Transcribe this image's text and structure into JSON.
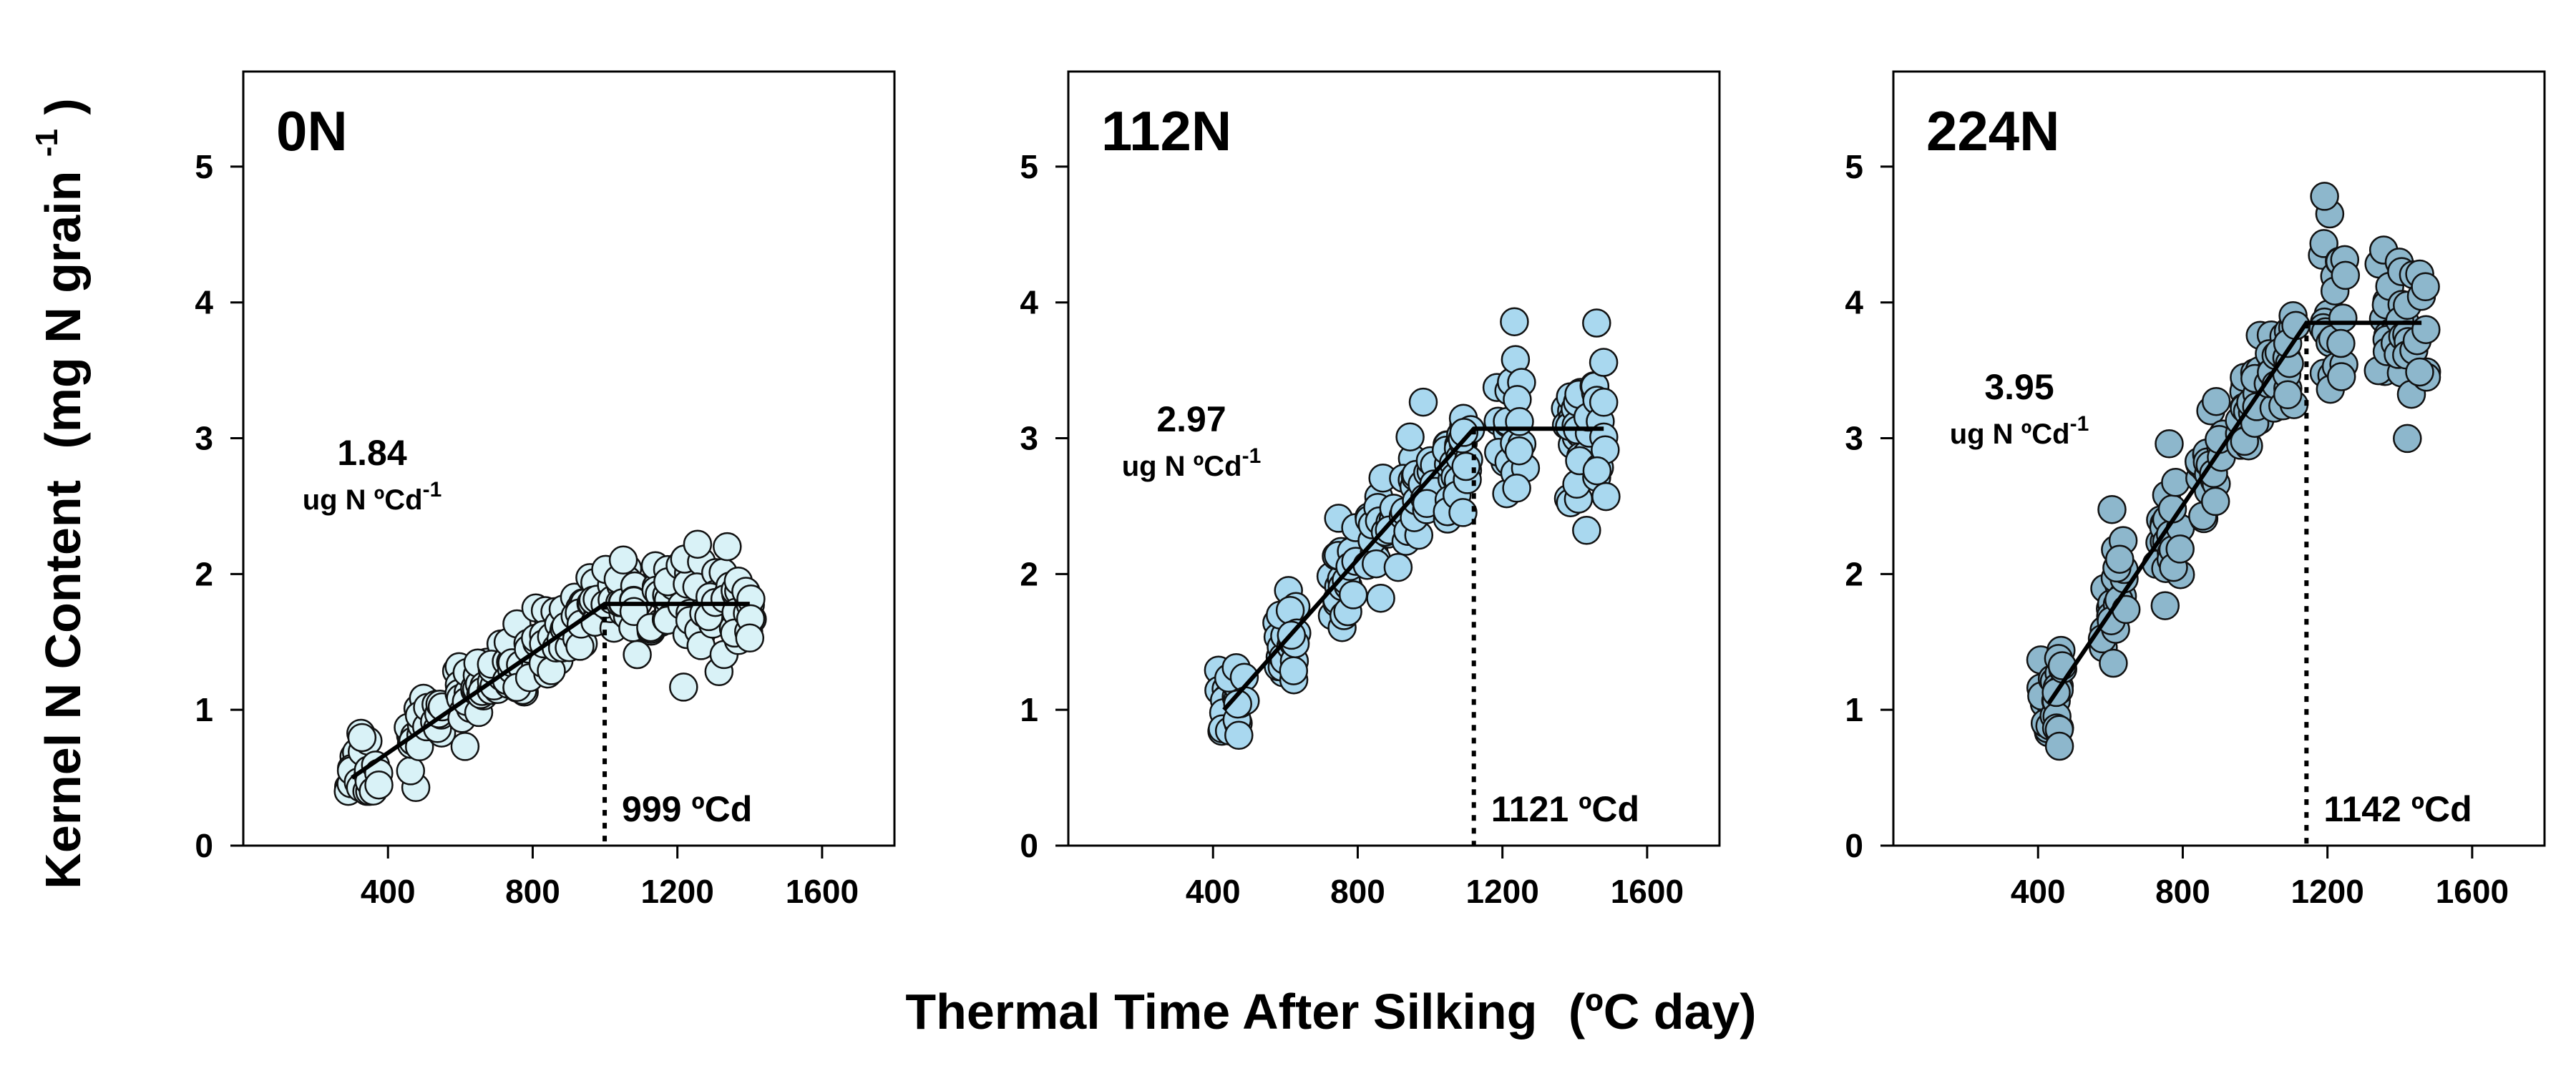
{
  "figure": {
    "y_axis_title": "Kernel  N  Content",
    "y_axis_units": "(mg N grain",
    "y_axis_units_exp": "-1",
    "y_axis_units_close": ")",
    "x_axis_title": "Thermal  Time  After  Silking",
    "x_axis_units": "(ºC day)"
  },
  "chart_data": [
    {
      "type": "scatter",
      "panel": "0N",
      "point_color": "#d9f2f7",
      "xlim": [
        0,
        1800
      ],
      "ylim": [
        0,
        5.7
      ],
      "x_ticks": [
        400,
        800,
        1200,
        1600
      ],
      "y_ticks": [
        0,
        1,
        2,
        3,
        4,
        5
      ],
      "slope_value": "1.84",
      "slope_unit": "ug N ºCd",
      "slope_unit_exp": "-1",
      "break_label": "999 ºCd",
      "fit": {
        "x0": 300,
        "y0": 0.5,
        "break_x": 999,
        "plateau": 1.78,
        "x_end": 1400,
        "slope": 0.00184
      },
      "sampling_times": [
        300,
        330,
        360,
        470,
        500,
        540,
        600,
        630,
        660,
        700,
        740,
        770,
        800,
        830,
        860,
        890,
        930,
        970,
        1010,
        1050,
        1090,
        1140,
        1180,
        1220,
        1260,
        1300,
        1340,
        1370,
        1400
      ],
      "noise": 0.22
    },
    {
      "type": "scatter",
      "panel": "112N",
      "point_color": "#a9d8ef",
      "xlim": [
        0,
        1800
      ],
      "ylim": [
        0,
        5.7
      ],
      "x_ticks": [
        400,
        800,
        1200,
        1600
      ],
      "y_ticks": [
        0,
        1,
        2,
        3,
        4,
        5
      ],
      "slope_value": "2.97",
      "slope_unit": "ug N ºCd",
      "slope_unit_exp": "-1",
      "break_label": "1121 ºCd",
      "fit": {
        "x0": 430,
        "y0": 1.0,
        "break_x": 1121,
        "plateau": 3.07,
        "x_end": 1480,
        "slope": 0.00297
      },
      "sampling_times": [
        430,
        455,
        475,
        580,
        600,
        625,
        740,
        760,
        780,
        840,
        870,
        900,
        940,
        970,
        1000,
        1050,
        1080,
        1100,
        1200,
        1225,
        1250,
        1380,
        1400,
        1420,
        1450,
        1475
      ],
      "noise": 0.35
    },
    {
      "type": "scatter",
      "panel": "224N",
      "point_color": "#8db7cc",
      "xlim": [
        0,
        1800
      ],
      "ylim": [
        0,
        5.7
      ],
      "x_ticks": [
        400,
        800,
        1200,
        1600
      ],
      "y_ticks": [
        0,
        1,
        2,
        3,
        4,
        5
      ],
      "slope_value": "3.95",
      "slope_unit": "ug N ºCd",
      "slope_unit_exp": "-1",
      "break_label": "1142 ºCd",
      "fit": {
        "x0": 430,
        "y0": 1.05,
        "break_x": 1142,
        "plateau": 3.85,
        "x_end": 1460,
        "slope": 0.00395
      },
      "sampling_times": [
        420,
        445,
        465,
        590,
        610,
        630,
        740,
        760,
        780,
        860,
        880,
        900,
        960,
        985,
        1010,
        1050,
        1080,
        1100,
        1200,
        1220,
        1240,
        1350,
        1375,
        1400,
        1430,
        1460
      ],
      "noise": 0.38
    }
  ]
}
